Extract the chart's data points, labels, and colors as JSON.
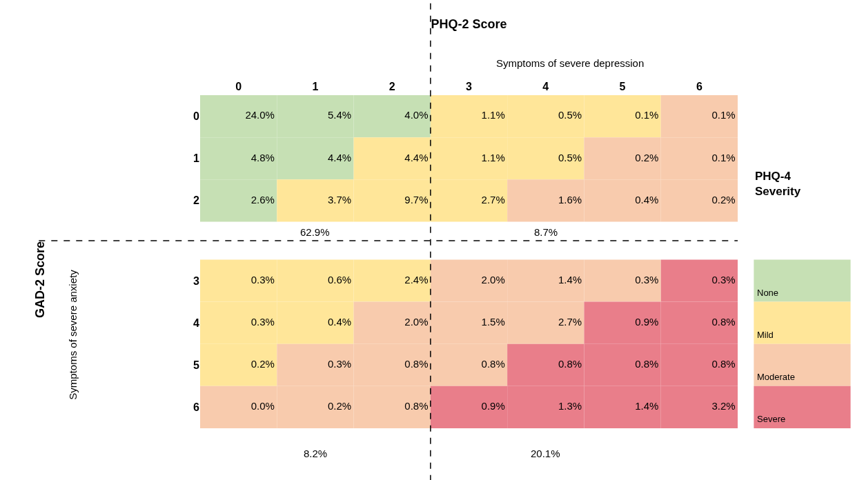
{
  "chart_data": [
    {
      "type": "heatmap",
      "xlabel": "PHQ-2 Score",
      "ylabel": "GAD-2 Score",
      "categories": [
        "0",
        "1",
        "2",
        "3",
        "4",
        "5",
        "6"
      ],
      "y_categories": [
        "0",
        "1",
        "2",
        "3",
        "4",
        "5",
        "6"
      ],
      "cells": [
        [
          24.0,
          5.4,
          4.0,
          1.1,
          0.5,
          0.1,
          0.1
        ],
        [
          4.8,
          4.4,
          4.4,
          1.1,
          0.5,
          0.2,
          0.1
        ],
        [
          2.6,
          3.7,
          9.7,
          2.7,
          1.6,
          0.4,
          0.2
        ],
        [
          0.3,
          0.6,
          2.4,
          2.0,
          1.4,
          0.3,
          0.3
        ],
        [
          0.3,
          0.4,
          2.0,
          1.5,
          2.7,
          0.9,
          0.8
        ],
        [
          0.2,
          0.3,
          0.8,
          0.8,
          0.8,
          0.8,
          0.8
        ],
        [
          0.0,
          0.2,
          0.8,
          0.9,
          1.3,
          1.4,
          3.2
        ]
      ],
      "cell_labels": [
        [
          "24.0%",
          "5.4%",
          "4.0%",
          "1.1%",
          "0.5%",
          "0.1%",
          "0.1%"
        ],
        [
          "4.8%",
          "4.4%",
          "4.4%",
          "1.1%",
          "0.5%",
          "0.2%",
          "0.1%"
        ],
        [
          "2.6%",
          "3.7%",
          "9.7%",
          "2.7%",
          "1.6%",
          "0.4%",
          "0.2%"
        ],
        [
          "0.3%",
          "0.6%",
          "2.4%",
          "2.0%",
          "1.4%",
          "0.3%",
          "0.3%"
        ],
        [
          "0.3%",
          "0.4%",
          "2.0%",
          "1.5%",
          "2.7%",
          "0.9%",
          "0.8%"
        ],
        [
          "0.2%",
          "0.3%",
          "0.8%",
          "0.8%",
          "0.8%",
          "0.8%",
          "0.8%"
        ],
        [
          "0.0%",
          "0.2%",
          "0.8%",
          "0.9%",
          "1.3%",
          "1.4%",
          "3.2%"
        ]
      ],
      "colors": [
        [
          "#c6e0b4",
          "#c6e0b4",
          "#c6e0b4",
          "#ffe699",
          "#ffe699",
          "#ffe699",
          "#f8cbad"
        ],
        [
          "#c6e0b4",
          "#c6e0b4",
          "#ffe699",
          "#ffe699",
          "#ffe699",
          "#f8cbad",
          "#f8cbad"
        ],
        [
          "#c6e0b4",
          "#ffe699",
          "#ffe699",
          "#ffe699",
          "#f8cbad",
          "#f8cbad",
          "#f8cbad"
        ],
        [
          "#ffe699",
          "#ffe699",
          "#ffe699",
          "#f8cbad",
          "#f8cbad",
          "#f8cbad",
          "#e97e8a"
        ],
        [
          "#ffe699",
          "#ffe699",
          "#f8cbad",
          "#f8cbad",
          "#f8cbad",
          "#e97e8a",
          "#e97e8a"
        ],
        [
          "#ffe699",
          "#f8cbad",
          "#f8cbad",
          "#f8cbad",
          "#e97e8a",
          "#e97e8a",
          "#e97e8a"
        ],
        [
          "#f8cbad",
          "#f8cbad",
          "#f8cbad",
          "#e97e8a",
          "#e97e8a",
          "#e97e8a",
          "#e97e8a"
        ]
      ],
      "annotations": [
        "Symptoms of severe depression",
        "Symptoms of severe anxiety",
        "62.9%",
        "8.7%",
        "8.2%",
        "20.1%"
      ]
    },
    {
      "type": "other",
      "title": "PHQ-4 Severity",
      "categories": [
        "None",
        "Mild",
        "Moderate",
        "Severe"
      ],
      "colors": [
        "#c6e0b4",
        "#ffe699",
        "#f8cbad",
        "#e97e8a"
      ]
    }
  ]
}
